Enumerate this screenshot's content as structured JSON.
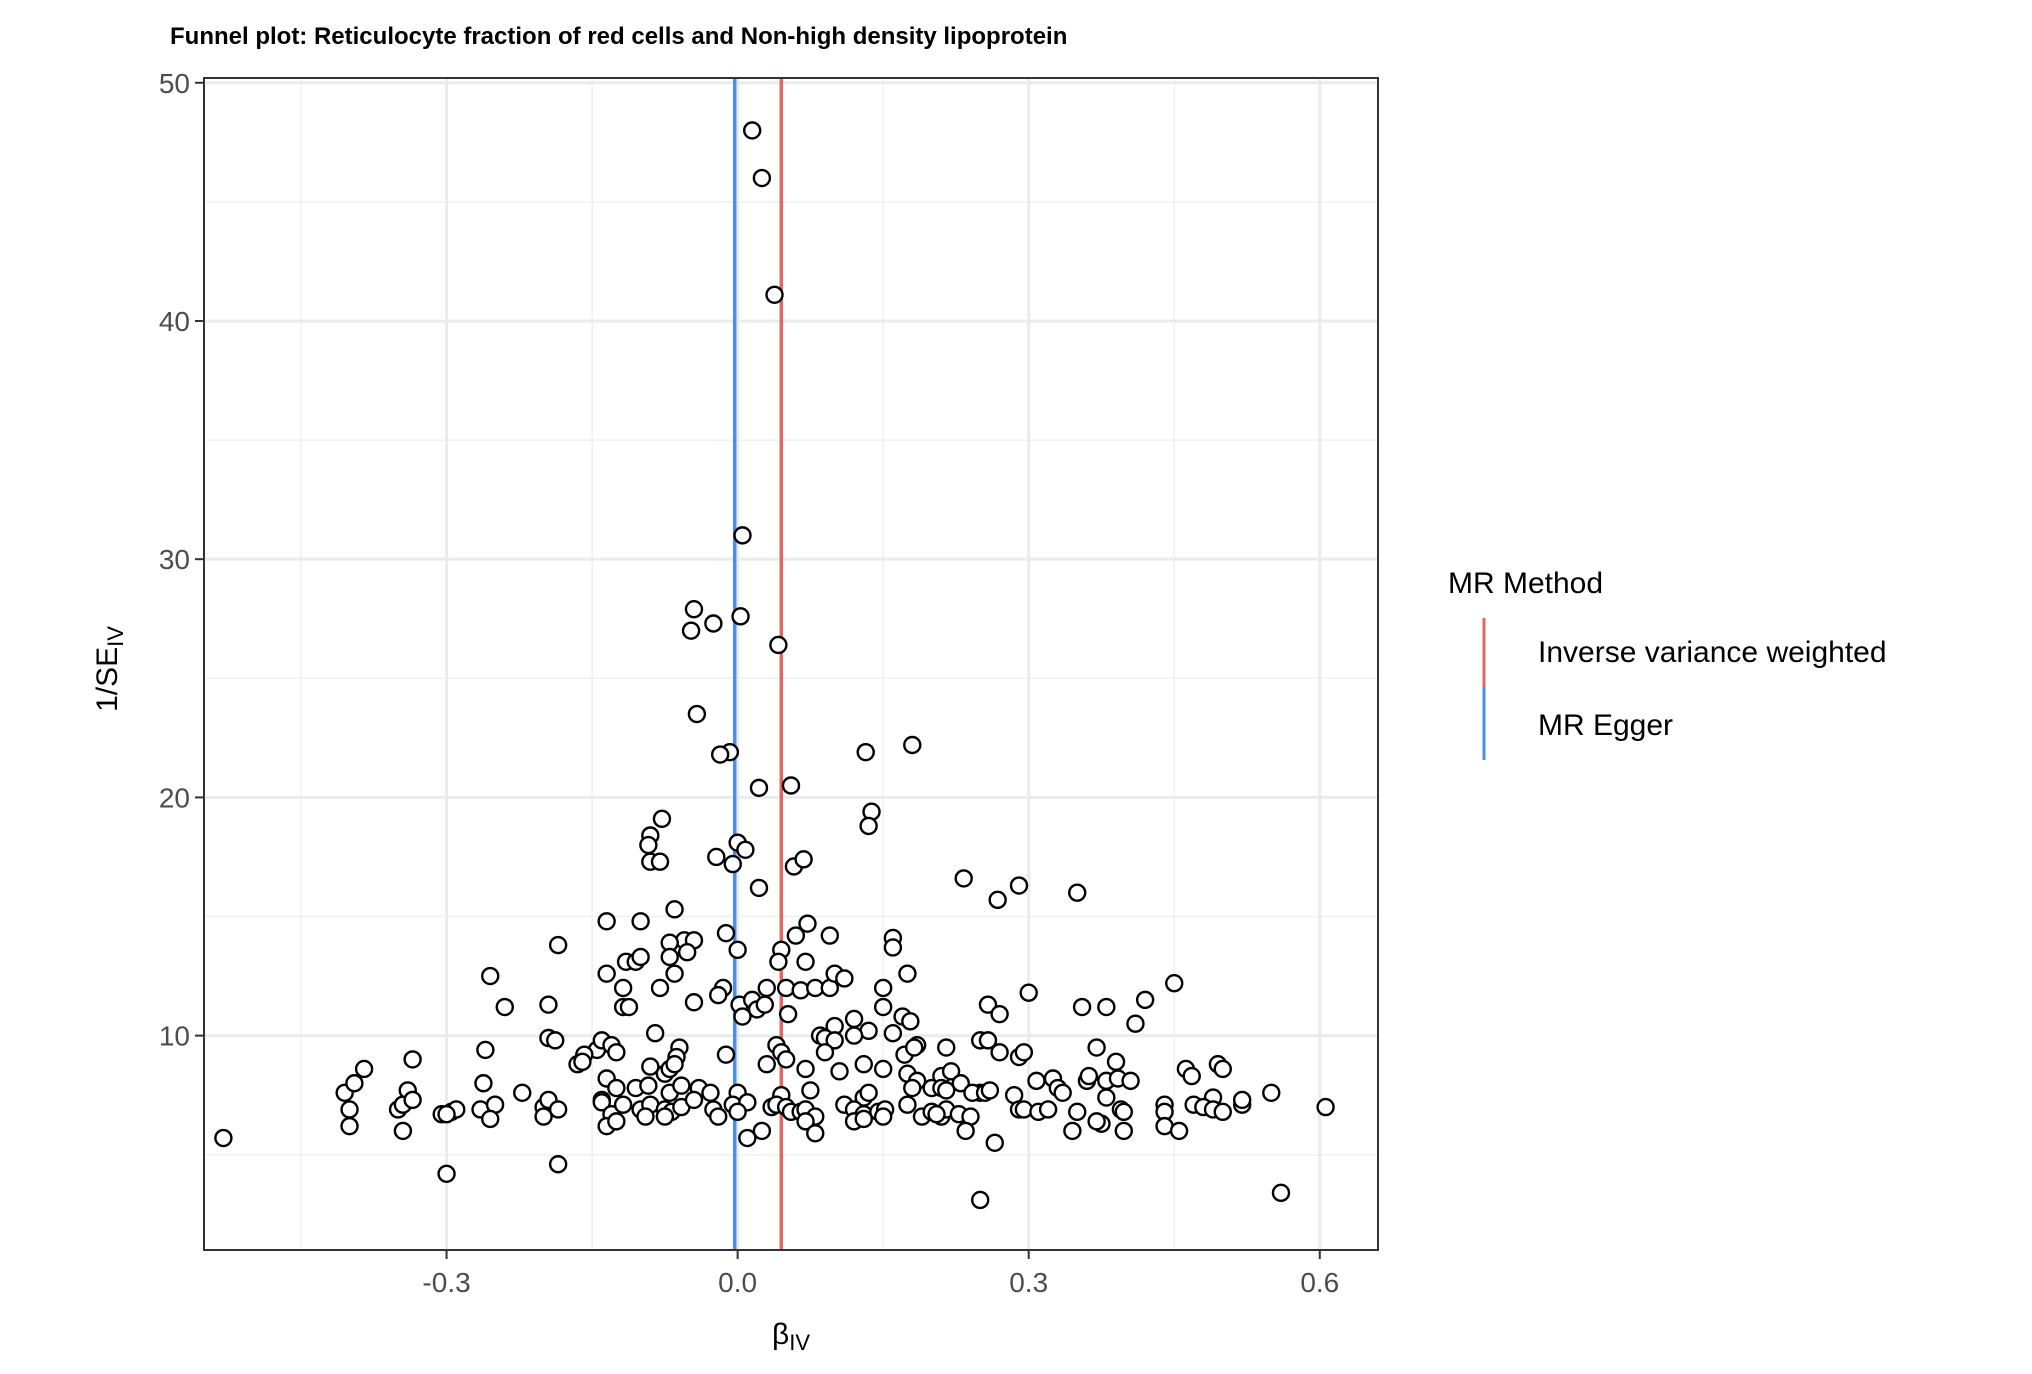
{
  "chart_data": {
    "type": "scatter",
    "title": "Funnel plot: Reticulocyte fraction of red cells and Non-high density lipoprotein",
    "xlabel_main": "β",
    "xlabel_sub": "IV",
    "ylabel_main": "1/SE",
    "ylabel_sub": "IV",
    "xlim": [
      -0.55,
      0.66
    ],
    "ylim": [
      1,
      50.2
    ],
    "x_ticks": [
      -0.3,
      0.0,
      0.3,
      0.6
    ],
    "x_tick_labels": [
      "-0.3",
      "0.0",
      "0.3",
      "0.6"
    ],
    "y_ticks": [
      10,
      20,
      30,
      40,
      50
    ],
    "y_tick_labels": [
      "10",
      "20",
      "30",
      "40",
      "50"
    ],
    "grid": true,
    "legend": {
      "title": "MR Method",
      "position": "right",
      "items": [
        {
          "label": "Inverse variance weighted",
          "color": "#E0685E"
        },
        {
          "label": "MR Egger",
          "color": "#4A8EF2"
        }
      ]
    },
    "lines": [
      {
        "method": "Inverse variance weighted",
        "beta": 0.045,
        "color": "#E0685E"
      },
      {
        "method": "MR Egger",
        "beta": -0.003,
        "color": "#4A8EF2"
      }
    ],
    "points": [
      [
        0.015,
        48.0
      ],
      [
        0.025,
        46.0
      ],
      [
        0.038,
        41.1
      ],
      [
        0.005,
        31.0
      ],
      [
        -0.045,
        27.9
      ],
      [
        -0.025,
        27.3
      ],
      [
        0.003,
        27.6
      ],
      [
        -0.048,
        27.0
      ],
      [
        0.042,
        26.4
      ],
      [
        -0.042,
        23.5
      ],
      [
        -0.008,
        21.9
      ],
      [
        -0.018,
        21.8
      ],
      [
        0.022,
        20.4
      ],
      [
        0.055,
        20.5
      ],
      [
        0.132,
        21.9
      ],
      [
        0.18,
        22.2
      ],
      [
        -0.078,
        19.1
      ],
      [
        -0.09,
        18.4
      ],
      [
        -0.092,
        18.0
      ],
      [
        -0.09,
        17.3
      ],
      [
        -0.08,
        17.3
      ],
      [
        -0.022,
        17.5
      ],
      [
        0.0,
        18.1
      ],
      [
        0.008,
        17.8
      ],
      [
        -0.005,
        17.2
      ],
      [
        0.058,
        17.1
      ],
      [
        0.068,
        17.4
      ],
      [
        0.138,
        19.4
      ],
      [
        0.135,
        18.8
      ],
      [
        0.022,
        16.2
      ],
      [
        0.233,
        16.6
      ],
      [
        0.268,
        15.7
      ],
      [
        0.29,
        16.3
      ],
      [
        0.35,
        16.0
      ],
      [
        -0.135,
        14.8
      ],
      [
        -0.1,
        14.8
      ],
      [
        -0.065,
        15.3
      ],
      [
        -0.055,
        14.0
      ],
      [
        -0.045,
        14.0
      ],
      [
        -0.07,
        13.9
      ],
      [
        -0.052,
        13.5
      ],
      [
        -0.012,
        14.3
      ],
      [
        0.0,
        13.6
      ],
      [
        0.045,
        13.6
      ],
      [
        0.042,
        13.1
      ],
      [
        0.06,
        14.2
      ],
      [
        0.072,
        14.7
      ],
      [
        0.07,
        13.1
      ],
      [
        0.095,
        14.2
      ],
      [
        0.16,
        14.1
      ],
      [
        0.16,
        13.7
      ],
      [
        -0.185,
        13.8
      ],
      [
        -0.115,
        13.1
      ],
      [
        -0.105,
        13.1
      ],
      [
        -0.1,
        13.3
      ],
      [
        -0.07,
        13.3
      ],
      [
        -0.135,
        12.6
      ],
      [
        -0.118,
        12.0
      ],
      [
        -0.08,
        12.0
      ],
      [
        -0.065,
        12.6
      ],
      [
        -0.015,
        12.0
      ],
      [
        0.03,
        12.0
      ],
      [
        0.05,
        12.0
      ],
      [
        0.065,
        11.9
      ],
      [
        0.08,
        12.0
      ],
      [
        0.095,
        12.0
      ],
      [
        0.1,
        12.6
      ],
      [
        0.11,
        12.4
      ],
      [
        0.15,
        12.0
      ],
      [
        0.175,
        12.6
      ],
      [
        0.45,
        12.2
      ],
      [
        -0.255,
        12.5
      ],
      [
        -0.24,
        11.2
      ],
      [
        -0.195,
        11.3
      ],
      [
        -0.118,
        11.2
      ],
      [
        -0.112,
        11.2
      ],
      [
        -0.045,
        11.4
      ],
      [
        -0.02,
        11.7
      ],
      [
        0.002,
        11.3
      ],
      [
        0.015,
        11.5
      ],
      [
        0.02,
        11.1
      ],
      [
        0.028,
        11.3
      ],
      [
        0.005,
        10.8
      ],
      [
        0.052,
        10.9
      ],
      [
        0.15,
        11.2
      ],
      [
        0.258,
        11.3
      ],
      [
        0.27,
        10.9
      ],
      [
        0.3,
        11.8
      ],
      [
        0.355,
        11.2
      ],
      [
        0.38,
        11.2
      ],
      [
        0.42,
        11.5
      ],
      [
        0.41,
        10.5
      ],
      [
        0.12,
        10.7
      ],
      [
        0.1,
        10.4
      ],
      [
        0.135,
        10.2
      ],
      [
        0.17,
        10.8
      ],
      [
        0.178,
        10.6
      ],
      [
        0.16,
        10.1
      ],
      [
        0.12,
        10.0
      ],
      [
        0.085,
        10.0
      ],
      [
        0.09,
        9.9
      ],
      [
        0.1,
        9.8
      ],
      [
        -0.195,
        9.9
      ],
      [
        -0.188,
        9.8
      ],
      [
        -0.145,
        9.4
      ],
      [
        -0.14,
        9.8
      ],
      [
        -0.13,
        9.6
      ],
      [
        -0.158,
        9.2
      ],
      [
        -0.125,
        9.3
      ],
      [
        -0.085,
        10.1
      ],
      [
        -0.06,
        9.5
      ],
      [
        -0.063,
        9.1
      ],
      [
        -0.012,
        9.2
      ],
      [
        0.04,
        9.6
      ],
      [
        0.045,
        9.3
      ],
      [
        0.09,
        9.3
      ],
      [
        0.172,
        9.2
      ],
      [
        0.185,
        9.6
      ],
      [
        0.182,
        9.5
      ],
      [
        0.215,
        9.5
      ],
      [
        0.25,
        9.8
      ],
      [
        0.258,
        9.8
      ],
      [
        0.27,
        9.3
      ],
      [
        0.29,
        9.1
      ],
      [
        0.295,
        9.3
      ],
      [
        0.37,
        9.5
      ],
      [
        0.39,
        8.9
      ],
      [
        0.25,
        7.6
      ],
      [
        -0.335,
        9.0
      ],
      [
        -0.385,
        8.6
      ],
      [
        -0.26,
        9.4
      ],
      [
        -0.165,
        8.8
      ],
      [
        -0.16,
        8.9
      ],
      [
        -0.09,
        8.7
      ],
      [
        -0.075,
        8.4
      ],
      [
        -0.07,
        8.6
      ],
      [
        -0.065,
        8.8
      ],
      [
        0.03,
        8.8
      ],
      [
        0.05,
        9.0
      ],
      [
        0.07,
        8.6
      ],
      [
        0.105,
        8.5
      ],
      [
        0.13,
        8.8
      ],
      [
        0.15,
        8.6
      ],
      [
        0.175,
        8.4
      ],
      [
        0.185,
        8.1
      ],
      [
        0.21,
        8.3
      ],
      [
        0.22,
        8.5
      ],
      [
        0.308,
        8.1
      ],
      [
        0.325,
        8.2
      ],
      [
        0.36,
        8.1
      ],
      [
        0.362,
        8.3
      ],
      [
        0.38,
        8.1
      ],
      [
        0.392,
        8.2
      ],
      [
        0.405,
        8.1
      ],
      [
        0.462,
        8.6
      ],
      [
        0.468,
        8.3
      ],
      [
        0.495,
        8.8
      ],
      [
        0.5,
        8.6
      ],
      [
        -0.405,
        7.6
      ],
      [
        -0.395,
        8.0
      ],
      [
        -0.34,
        7.7
      ],
      [
        -0.262,
        8.0
      ],
      [
        -0.222,
        7.6
      ],
      [
        -0.14,
        7.3
      ],
      [
        -0.135,
        8.2
      ],
      [
        -0.125,
        7.8
      ],
      [
        -0.105,
        7.8
      ],
      [
        -0.092,
        7.9
      ],
      [
        -0.07,
        7.6
      ],
      [
        -0.058,
        7.9
      ],
      [
        -0.04,
        7.8
      ],
      [
        -0.028,
        7.6
      ],
      [
        0.0,
        7.6
      ],
      [
        0.045,
        7.5
      ],
      [
        0.075,
        7.7
      ],
      [
        0.13,
        7.4
      ],
      [
        0.135,
        7.6
      ],
      [
        0.18,
        7.8
      ],
      [
        0.2,
        7.8
      ],
      [
        0.21,
        7.8
      ],
      [
        0.215,
        7.7
      ],
      [
        0.23,
        8.0
      ],
      [
        0.242,
        7.6
      ],
      [
        0.255,
        7.6
      ],
      [
        0.26,
        7.7
      ],
      [
        0.285,
        7.5
      ],
      [
        0.33,
        7.8
      ],
      [
        0.335,
        7.6
      ],
      [
        0.38,
        7.4
      ],
      [
        0.44,
        7.1
      ],
      [
        0.47,
        7.1
      ],
      [
        0.49,
        7.4
      ],
      [
        0.52,
        7.1
      ],
      [
        0.52,
        7.3
      ],
      [
        0.55,
        7.6
      ],
      [
        -0.4,
        6.9
      ],
      [
        -0.35,
        6.9
      ],
      [
        -0.345,
        7.1
      ],
      [
        -0.335,
        7.3
      ],
      [
        -0.305,
        6.7
      ],
      [
        -0.295,
        6.8
      ],
      [
        -0.29,
        6.9
      ],
      [
        -0.265,
        6.9
      ],
      [
        -0.25,
        7.1
      ],
      [
        -0.2,
        7.0
      ],
      [
        -0.195,
        7.3
      ],
      [
        -0.185,
        6.9
      ],
      [
        -0.14,
        7.2
      ],
      [
        -0.13,
        6.7
      ],
      [
        -0.118,
        7.1
      ],
      [
        -0.1,
        6.9
      ],
      [
        -0.09,
        7.1
      ],
      [
        -0.075,
        6.9
      ],
      [
        -0.068,
        6.8
      ],
      [
        -0.058,
        7.0
      ],
      [
        -0.045,
        7.3
      ],
      [
        -0.025,
        6.9
      ],
      [
        -0.005,
        7.1
      ],
      [
        0.01,
        7.2
      ],
      [
        0.035,
        7.0
      ],
      [
        0.04,
        7.1
      ],
      [
        0.05,
        7.0
      ],
      [
        0.055,
        6.8
      ],
      [
        0.065,
        6.8
      ],
      [
        0.07,
        6.9
      ],
      [
        0.08,
        6.6
      ],
      [
        0.11,
        7.1
      ],
      [
        0.12,
        6.9
      ],
      [
        0.13,
        6.7
      ],
      [
        0.145,
        6.8
      ],
      [
        0.152,
        6.9
      ],
      [
        0.175,
        7.1
      ],
      [
        0.19,
        6.6
      ],
      [
        0.2,
        6.8
      ],
      [
        0.21,
        6.6
      ],
      [
        0.215,
        6.9
      ],
      [
        0.228,
        6.7
      ],
      [
        0.24,
        6.6
      ],
      [
        0.29,
        6.9
      ],
      [
        0.295,
        6.9
      ],
      [
        0.31,
        6.8
      ],
      [
        0.32,
        6.9
      ],
      [
        0.35,
        6.8
      ],
      [
        0.375,
        6.3
      ],
      [
        0.395,
        6.9
      ],
      [
        0.398,
        6.8
      ],
      [
        0.44,
        6.8
      ],
      [
        0.48,
        7.0
      ],
      [
        0.49,
        6.9
      ],
      [
        0.5,
        6.8
      ],
      [
        0.606,
        7.0
      ],
      [
        -0.4,
        6.2
      ],
      [
        -0.345,
        6.0
      ],
      [
        -0.3,
        6.7
      ],
      [
        -0.255,
        6.5
      ],
      [
        -0.2,
        6.6
      ],
      [
        -0.135,
        6.2
      ],
      [
        -0.125,
        6.4
      ],
      [
        -0.095,
        6.6
      ],
      [
        -0.075,
        6.6
      ],
      [
        -0.02,
        6.6
      ],
      [
        0.0,
        6.8
      ],
      [
        0.025,
        6.0
      ],
      [
        0.01,
        5.7
      ],
      [
        0.07,
        6.4
      ],
      [
        0.08,
        5.9
      ],
      [
        0.12,
        6.4
      ],
      [
        0.13,
        6.5
      ],
      [
        0.15,
        6.6
      ],
      [
        0.205,
        6.7
      ],
      [
        0.235,
        6.0
      ],
      [
        0.265,
        5.5
      ],
      [
        0.345,
        6.0
      ],
      [
        0.37,
        6.4
      ],
      [
        0.398,
        6.0
      ],
      [
        0.44,
        6.2
      ],
      [
        0.455,
        6.0
      ],
      [
        -0.53,
        5.7
      ],
      [
        -0.3,
        4.2
      ],
      [
        -0.185,
        4.6
      ],
      [
        0.25,
        3.1
      ],
      [
        0.56,
        3.4
      ]
    ]
  }
}
